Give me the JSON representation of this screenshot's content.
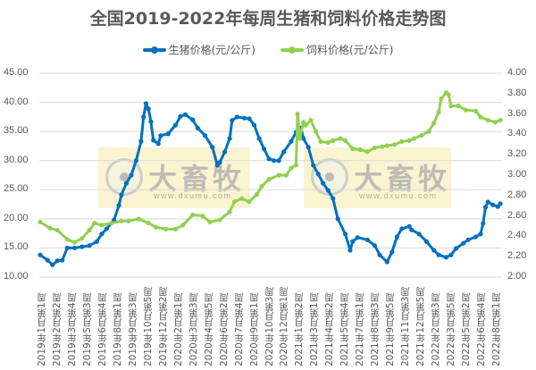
{
  "chart_data": {
    "type": "line",
    "title": "全国2019-2022年每周生猪和饲料价格走势图",
    "legend_position": "top",
    "grid": true,
    "left_axis": {
      "ylim": [
        10,
        45
      ],
      "ticks": [
        "45.00",
        "40.00",
        "35.00",
        "30.00",
        "25.00",
        "20.00",
        "15.00",
        "10.00"
      ]
    },
    "right_axis": {
      "ylim": [
        2.0,
        4.0
      ],
      "ticks": [
        "4.00",
        "3.80",
        "3.60",
        "3.40",
        "3.20",
        "3.00",
        "2.80",
        "2.60",
        "2.40",
        "2.20",
        "2.00"
      ]
    },
    "x_tick_labels": [
      "2019年1月第1周",
      "2019年2月第2周",
      "2019年3月第4周",
      "2019年5月第3周",
      "2019年6月第4周",
      "2019年8月第1周",
      "2019年9月第3周",
      "2019年10月第5周",
      "2019年12月第2周",
      "2020年2月第1周",
      "2020年3月第3周",
      "2020年4月第5周",
      "2020年6月第2周",
      "2020年7月第4周",
      "2020年9月第1周",
      "2020年10月第3周",
      "2020年12月第1周",
      "2021年1月第2周",
      "2021年3月第1周",
      "2021年4月第2周",
      "2021年5月第4周",
      "2021年7月第1周",
      "2021年8月第3周",
      "2021年9月第5周",
      "2021年11月第3周",
      "2021年12月第5周",
      "2022年2月第3周",
      "2022年3月第5周",
      "2022年5月第2周",
      "2022年6月第4周",
      "2022年8月第1周"
    ],
    "n_weeks": 188,
    "series": [
      {
        "name": "生猪价格(元/公斤)",
        "axis": "left",
        "color": "#0070C0",
        "points": [
          [
            0,
            13.8
          ],
          [
            3,
            12.9
          ],
          [
            5,
            12.1
          ],
          [
            7,
            12.8
          ],
          [
            9,
            12.9
          ],
          [
            11,
            15.0
          ],
          [
            14,
            15.0
          ],
          [
            17,
            15.2
          ],
          [
            20,
            15.4
          ],
          [
            23,
            16.1
          ],
          [
            25,
            17.4
          ],
          [
            27,
            18.3
          ],
          [
            30,
            19.8
          ],
          [
            32,
            22.3
          ],
          [
            33,
            24.1
          ],
          [
            35,
            26.1
          ],
          [
            37,
            27.5
          ],
          [
            39,
            30.0
          ],
          [
            41,
            33.3
          ],
          [
            42,
            37.5
          ],
          [
            43,
            39.8
          ],
          [
            44,
            38.9
          ],
          [
            45,
            36.7
          ],
          [
            46,
            33.5
          ],
          [
            48,
            32.9
          ],
          [
            49,
            34.3
          ],
          [
            52,
            34.6
          ],
          [
            55,
            36.1
          ],
          [
            57,
            37.6
          ],
          [
            59,
            37.9
          ],
          [
            62,
            37.0
          ],
          [
            64,
            35.6
          ],
          [
            67,
            34.3
          ],
          [
            70,
            32.3
          ],
          [
            72,
            29.2
          ],
          [
            73,
            29.7
          ],
          [
            75,
            31.5
          ],
          [
            77,
            33.8
          ],
          [
            78,
            36.9
          ],
          [
            80,
            37.5
          ],
          [
            83,
            37.3
          ],
          [
            85,
            37.2
          ],
          [
            87,
            36.1
          ],
          [
            89,
            33.8
          ],
          [
            91,
            32.0
          ],
          [
            93,
            30.3
          ],
          [
            95,
            30.0
          ],
          [
            97,
            30.0
          ],
          [
            99,
            31.5
          ],
          [
            102,
            33.3
          ],
          [
            104,
            34.9
          ],
          [
            106,
            35.6
          ],
          [
            107,
            33.8
          ],
          [
            109,
            32.3
          ],
          [
            111,
            29.2
          ],
          [
            113,
            27.7
          ],
          [
            115,
            26.1
          ],
          [
            117,
            24.9
          ],
          [
            119,
            23.5
          ],
          [
            121,
            20.0
          ],
          [
            124,
            17.4
          ],
          [
            126,
            14.6
          ],
          [
            127,
            16.1
          ],
          [
            129,
            16.8
          ],
          [
            133,
            16.4
          ],
          [
            136,
            15.4
          ],
          [
            138,
            13.8
          ],
          [
            141,
            12.6
          ],
          [
            143,
            14.3
          ],
          [
            145,
            16.9
          ],
          [
            147,
            18.3
          ],
          [
            150,
            18.7
          ],
          [
            151,
            18.1
          ],
          [
            154,
            17.4
          ],
          [
            157,
            16.1
          ],
          [
            160,
            14.6
          ],
          [
            162,
            13.8
          ],
          [
            165,
            13.4
          ],
          [
            167,
            13.8
          ],
          [
            169,
            14.9
          ],
          [
            172,
            15.8
          ],
          [
            174,
            16.4
          ],
          [
            177,
            16.9
          ],
          [
            179,
            17.4
          ],
          [
            180,
            19.2
          ],
          [
            181,
            22.0
          ],
          [
            182,
            22.9
          ],
          [
            184,
            22.4
          ],
          [
            186,
            22.1
          ],
          [
            187,
            22.6
          ]
        ]
      },
      {
        "name": "饲料价格(元/公斤)",
        "axis": "right",
        "color": "#92D050",
        "points": [
          [
            0,
            2.54
          ],
          [
            4,
            2.48
          ],
          [
            7,
            2.46
          ],
          [
            11,
            2.37
          ],
          [
            14,
            2.34
          ],
          [
            17,
            2.38
          ],
          [
            20,
            2.46
          ],
          [
            22,
            2.53
          ],
          [
            25,
            2.51
          ],
          [
            29,
            2.53
          ],
          [
            33,
            2.55
          ],
          [
            36,
            2.55
          ],
          [
            40,
            2.57
          ],
          [
            44,
            2.53
          ],
          [
            47,
            2.49
          ],
          [
            51,
            2.47
          ],
          [
            55,
            2.47
          ],
          [
            58,
            2.51
          ],
          [
            62,
            2.61
          ],
          [
            66,
            2.6
          ],
          [
            69,
            2.54
          ],
          [
            73,
            2.56
          ],
          [
            77,
            2.64
          ],
          [
            79,
            2.74
          ],
          [
            82,
            2.77
          ],
          [
            85,
            2.74
          ],
          [
            88,
            2.81
          ],
          [
            90,
            2.89
          ],
          [
            93,
            2.96
          ],
          [
            97,
            3.0
          ],
          [
            100,
            3.0
          ],
          [
            102,
            3.07
          ],
          [
            104,
            3.1
          ],
          [
            104.6,
            3.6
          ],
          [
            105.5,
            3.36
          ],
          [
            107,
            3.52
          ],
          [
            108,
            3.49
          ],
          [
            110,
            3.54
          ],
          [
            112,
            3.43
          ],
          [
            114,
            3.33
          ],
          [
            117,
            3.32
          ],
          [
            119,
            3.34
          ],
          [
            122,
            3.36
          ],
          [
            124,
            3.34
          ],
          [
            127,
            3.26
          ],
          [
            130,
            3.25
          ],
          [
            133,
            3.23
          ],
          [
            136,
            3.27
          ],
          [
            139,
            3.28
          ],
          [
            141,
            3.29
          ],
          [
            144,
            3.3
          ],
          [
            147,
            3.33
          ],
          [
            150,
            3.34
          ],
          [
            152,
            3.36
          ],
          [
            155,
            3.39
          ],
          [
            158,
            3.43
          ],
          [
            160,
            3.51
          ],
          [
            162,
            3.62
          ],
          [
            163,
            3.75
          ],
          [
            165,
            3.81
          ],
          [
            166,
            3.79
          ],
          [
            167,
            3.68
          ],
          [
            170,
            3.68
          ],
          [
            173,
            3.64
          ],
          [
            177,
            3.63
          ],
          [
            179,
            3.57
          ],
          [
            182,
            3.54
          ],
          [
            185,
            3.52
          ],
          [
            187,
            3.54
          ]
        ]
      }
    ]
  },
  "legend": [
    {
      "label": "生猪价格(元/公斤)",
      "color": "#0070C0"
    },
    {
      "label": "饲料价格(元/公斤)",
      "color": "#92D050"
    }
  ],
  "watermark": {
    "text": "大畜牧",
    "url": "www.dxumu.com"
  }
}
